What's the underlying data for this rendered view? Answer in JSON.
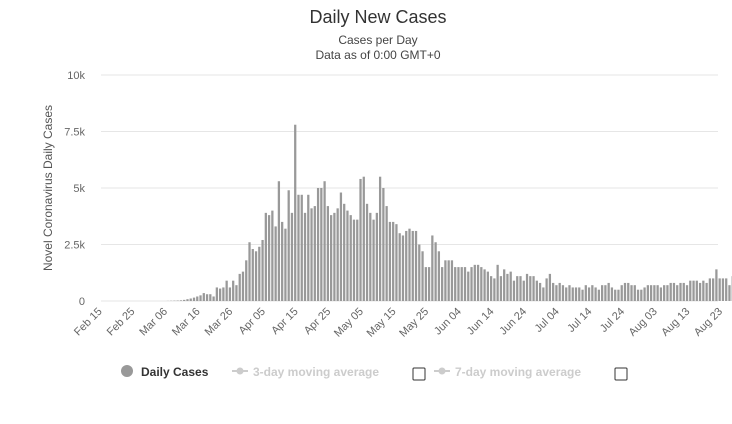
{
  "chart_data": {
    "type": "bar",
    "title": "Daily New Cases",
    "subtitle_lines": [
      "Cases per Day",
      "Data as of 0:00 GMT+0"
    ],
    "ylabel": "Novel Coronavirus Daily Cases",
    "xlabel": "",
    "ylim": [
      0,
      10000
    ],
    "yticks": [
      {
        "value": 0,
        "label": "0"
      },
      {
        "value": 2500,
        "label": "2.5k"
      },
      {
        "value": 5000,
        "label": "5k"
      },
      {
        "value": 7500,
        "label": "7.5k"
      },
      {
        "value": 10000,
        "label": "10k"
      }
    ],
    "x_tick_labels": [
      "Feb 15",
      "Feb 25",
      "Mar 06",
      "Mar 16",
      "Mar 26",
      "Apr 05",
      "Apr 15",
      "Apr 25",
      "May 05",
      "May 15",
      "May 25",
      "Jun 04",
      "Jun 14",
      "Jun 24",
      "Jul 04",
      "Jul 14",
      "Jul 24",
      "Aug 03",
      "Aug 13",
      "Aug 23"
    ],
    "x_start": "Feb 15",
    "grid": true,
    "series": [
      {
        "name": "Daily Cases",
        "color": "#999999",
        "values": [
          0,
          0,
          0,
          0,
          0,
          0,
          0,
          0,
          0,
          0,
          0,
          0,
          0,
          0,
          0,
          0,
          0,
          0,
          0,
          0,
          5,
          10,
          15,
          20,
          30,
          50,
          80,
          110,
          150,
          200,
          250,
          350,
          300,
          300,
          200,
          600,
          550,
          600,
          900,
          600,
          900,
          700,
          1200,
          1300,
          1800,
          2600,
          2300,
          2200,
          2400,
          2700,
          3900,
          3800,
          4000,
          3300,
          5300,
          3500,
          3200,
          4900,
          3900,
          7800,
          4700,
          4700,
          3900,
          4700,
          4100,
          4200,
          5000,
          5000,
          5300,
          4200,
          3800,
          3900,
          4100,
          4800,
          4300,
          4000,
          3800,
          3600,
          3600,
          5400,
          5500,
          4300,
          3900,
          3600,
          3900,
          5500,
          5000,
          4200,
          3500,
          3500,
          3400,
          3000,
          2900,
          3100,
          3200,
          3100,
          3100,
          2500,
          2200,
          1500,
          1500,
          2900,
          2600,
          2200,
          1500,
          1800,
          1800,
          1800,
          1500,
          1500,
          1500,
          1500,
          1300,
          1500,
          1600,
          1600,
          1500,
          1400,
          1300,
          1100,
          1000,
          1600,
          1100,
          1400,
          1200,
          1300,
          900,
          1100,
          1100,
          900,
          1200,
          1100,
          1100,
          900,
          800,
          600,
          1000,
          1200,
          800,
          700,
          800,
          700,
          600,
          700,
          600,
          600,
          600,
          500,
          700,
          600,
          700,
          600,
          500,
          700,
          700,
          800,
          600,
          500,
          500,
          700,
          800,
          800,
          700,
          700,
          500,
          500,
          600,
          700,
          700,
          700,
          700,
          600,
          700,
          700,
          800,
          800,
          700,
          800,
          800,
          700,
          900,
          900,
          900,
          800,
          900,
          800,
          1000,
          1000,
          1400,
          1000,
          1000,
          1000,
          700,
          1100,
          1000,
          1100,
          1200,
          1100
        ]
      }
    ],
    "legend": {
      "placement": "bottom-center",
      "items": [
        {
          "label": "Daily Cases",
          "active": true,
          "color": "#999999"
        },
        {
          "label": "3-day moving average",
          "active": false,
          "color": "#cccccc"
        },
        {
          "label": "7-day moving average",
          "active": false,
          "color": "#cccccc"
        }
      ]
    }
  }
}
